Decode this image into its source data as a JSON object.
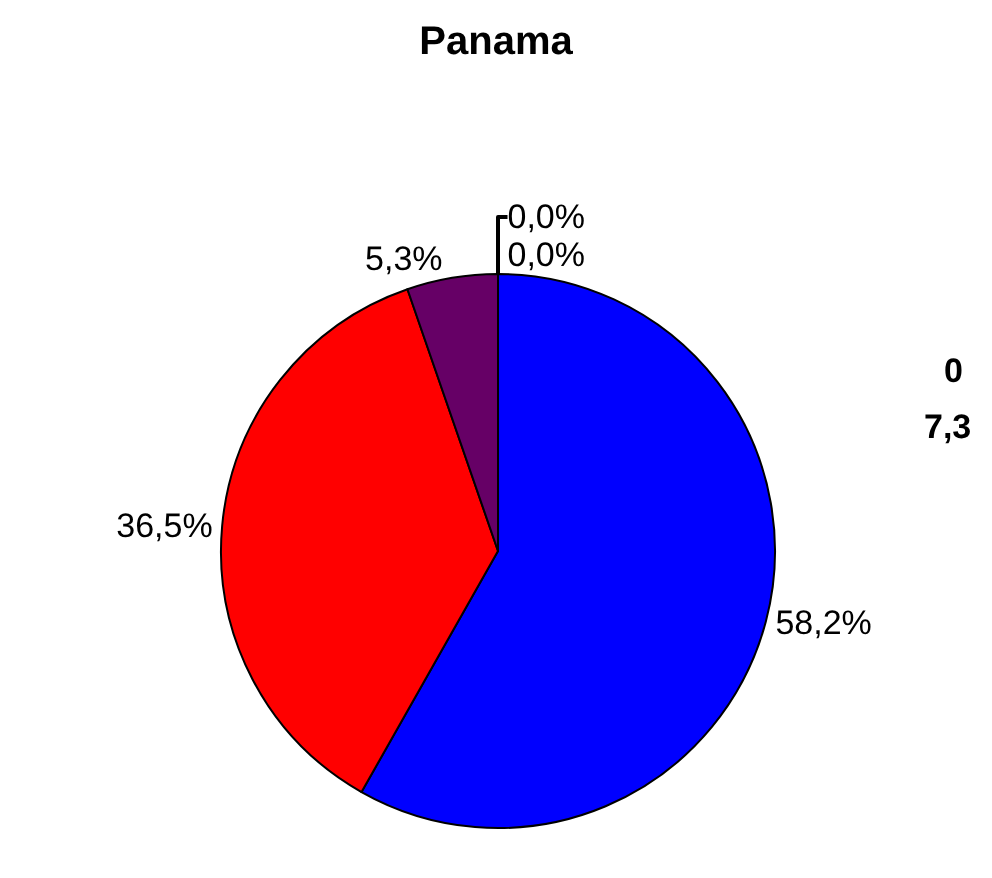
{
  "chart_data": {
    "type": "pie",
    "title": "Panama",
    "categories": [
      null,
      null,
      null,
      null,
      null
    ],
    "values": [
      58.2,
      36.5,
      5.3,
      0.0,
      0.0
    ],
    "colors": [
      "#0000ff",
      "#ff0000",
      "#660066",
      "#00ffff",
      "#ffff00"
    ],
    "value_labels": [
      "58,2%",
      "36,5%",
      "5,3%",
      "0,0%",
      "0,0%"
    ],
    "annotations": [
      "0",
      "7,3"
    ],
    "legend": false
  }
}
